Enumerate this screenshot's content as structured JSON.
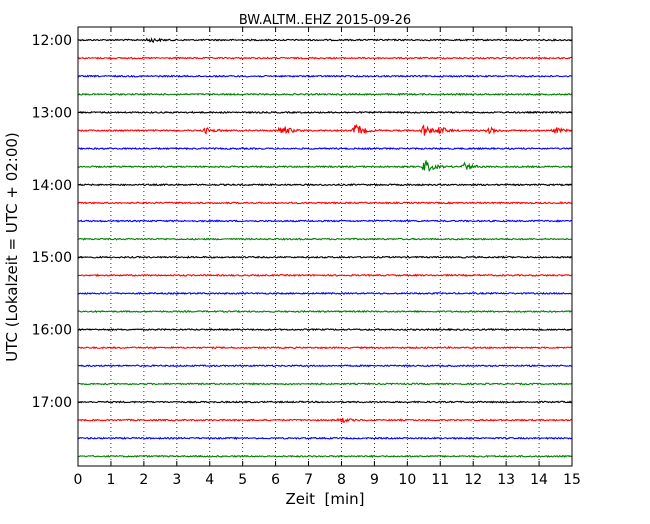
{
  "chart_data": {
    "type": "line",
    "title": "BW.ALTM..EHZ 2015-09-26",
    "xlabel": "Zeit  [min]",
    "ylabel": "UTC (Lokalzeit = UTC + 02:00)",
    "xlim": [
      0,
      15
    ],
    "x_ticks": [
      "0",
      "1",
      "2",
      "3",
      "4",
      "5",
      "6",
      "7",
      "8",
      "9",
      "10",
      "11",
      "12",
      "13",
      "14",
      "15"
    ],
    "y_ticks": [
      "12:00",
      "13:00",
      "14:00",
      "15:00",
      "16:00",
      "17:00"
    ],
    "grid": "vertical dotted lines at each minute",
    "trace_colors": [
      "#000000",
      "#ff0000",
      "#0000ff",
      "#008000"
    ],
    "traces": [
      {
        "start": "12:00",
        "events": [
          {
            "x": 2.2,
            "amp": 0.35
          }
        ]
      },
      {
        "start": "12:15",
        "events": []
      },
      {
        "start": "12:30",
        "events": []
      },
      {
        "start": "12:45",
        "events": []
      },
      {
        "start": "13:00",
        "events": []
      },
      {
        "start": "13:15",
        "events": [
          {
            "x": 3.9,
            "amp": 0.4
          },
          {
            "x": 6.2,
            "amp": 0.85
          },
          {
            "x": 8.45,
            "amp": 1.0
          },
          {
            "x": 10.5,
            "amp": 0.9
          },
          {
            "x": 11.0,
            "amp": 0.5
          },
          {
            "x": 12.5,
            "amp": 0.45
          },
          {
            "x": 14.5,
            "amp": 0.4
          }
        ]
      },
      {
        "start": "13:30",
        "events": []
      },
      {
        "start": "13:45",
        "events": [
          {
            "x": 10.55,
            "amp": 1.0
          },
          {
            "x": 11.75,
            "amp": 0.6
          }
        ]
      },
      {
        "start": "14:00",
        "events": []
      },
      {
        "start": "14:15",
        "events": []
      },
      {
        "start": "14:30",
        "events": []
      },
      {
        "start": "14:45",
        "events": []
      },
      {
        "start": "15:00",
        "events": []
      },
      {
        "start": "15:15",
        "events": []
      },
      {
        "start": "15:30",
        "events": []
      },
      {
        "start": "15:45",
        "events": []
      },
      {
        "start": "16:00",
        "events": []
      },
      {
        "start": "16:15",
        "events": []
      },
      {
        "start": "16:30",
        "events": []
      },
      {
        "start": "16:45",
        "events": []
      },
      {
        "start": "17:00",
        "events": []
      },
      {
        "start": "17:15",
        "events": [
          {
            "x": 8.0,
            "amp": 0.35
          }
        ]
      },
      {
        "start": "17:30",
        "events": []
      },
      {
        "start": "17:45",
        "events": []
      }
    ]
  }
}
